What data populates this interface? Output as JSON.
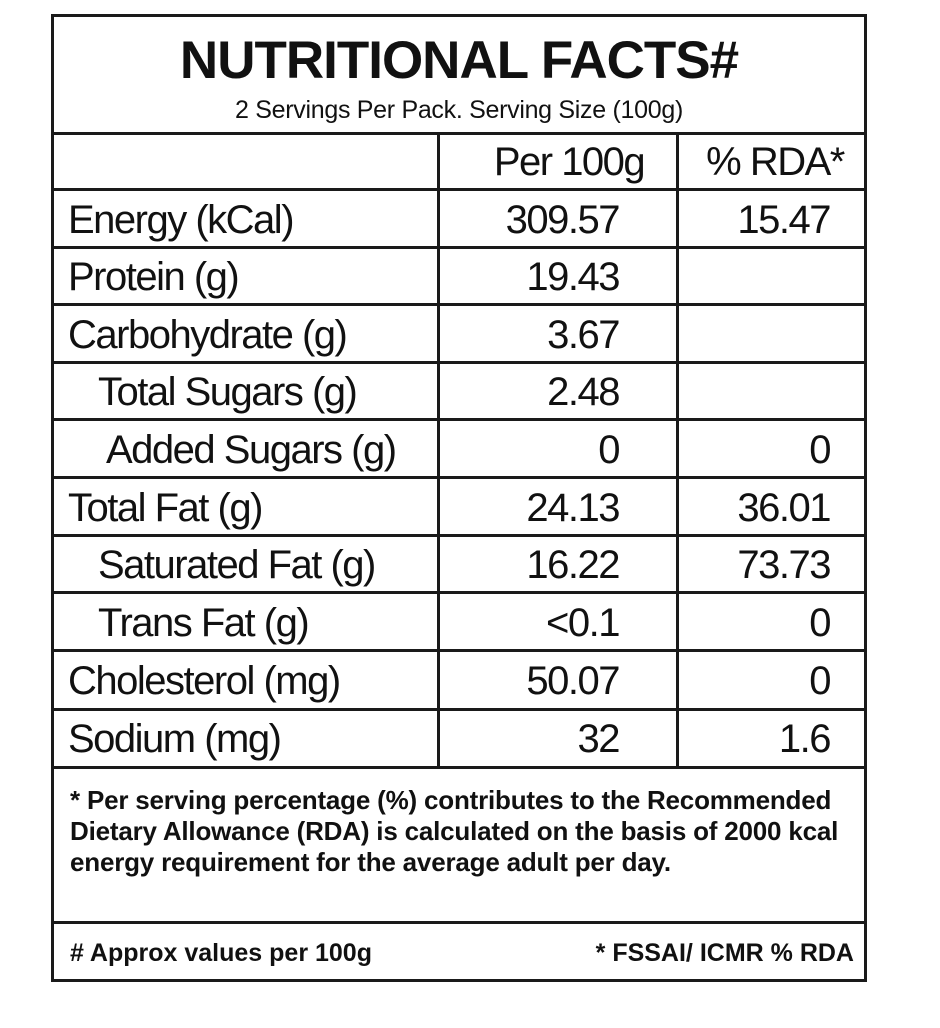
{
  "title": "NUTRITIONAL FACTS#",
  "subtitle": "2 Servings Per Pack. Serving Size (100g)",
  "columns": {
    "per": "Per 100g",
    "rda": "% RDA*"
  },
  "rows": [
    {
      "name": "Energy (kCal)",
      "per": "309.57",
      "rda": "15.47"
    },
    {
      "name": "Protein (g)",
      "per": "19.43",
      "rda": ""
    },
    {
      "name": "Carbohydrate (g)",
      "per": "3.67",
      "rda": ""
    },
    {
      "name": "Total Sugars (g)",
      "per": "2.48",
      "rda": ""
    },
    {
      "name": "Added Sugars (g)",
      "per": "0",
      "rda": "0"
    },
    {
      "name": "Total Fat (g)",
      "per": "24.13",
      "rda": "36.01"
    },
    {
      "name": "Saturated Fat (g)",
      "per": "16.22",
      "rda": "73.73"
    },
    {
      "name": "Trans Fat (g)",
      "per": "<0.1",
      "rda": "0"
    },
    {
      "name": "Cholesterol (mg)",
      "per": "50.07",
      "rda": "0"
    },
    {
      "name": "Sodium (mg)",
      "per": "32",
      "rda": "1.6"
    }
  ],
  "footnote": "* Per serving percentage (%) contributes to the Recommended Dietary Allowance (RDA) is calculated on the basis of 2000 kcal energy requirement for the average adult per day.",
  "footer": {
    "left": "# Approx values per 100g",
    "right": "* FSSAI/ ICMR % RDA"
  }
}
